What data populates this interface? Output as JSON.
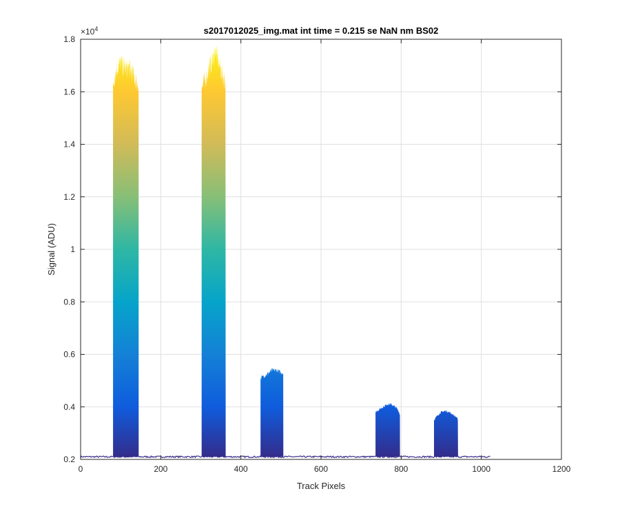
{
  "chart_data": {
    "type": "area",
    "title": "s2017012025_img.mat int time = 0.215 se  NaN nm BS02",
    "xlabel": "Track Pixels",
    "ylabel": "Signal (ADU)",
    "xlim": [
      0,
      1200
    ],
    "ylim": [
      2000,
      18000
    ],
    "x_ticks": [
      0,
      200,
      400,
      600,
      800,
      1000,
      1200
    ],
    "x_tick_labels": [
      "0",
      "200",
      "400",
      "600",
      "800",
      "1000",
      "1200"
    ],
    "y_ticks": [
      2000,
      4000,
      6000,
      8000,
      10000,
      12000,
      14000,
      16000,
      18000
    ],
    "y_tick_labels": [
      "0.2",
      "0.4",
      "0.6",
      "0.8",
      "1",
      "1.2",
      "1.4",
      "1.6",
      "1.8"
    ],
    "y_exponent_label": "×10",
    "y_exponent_power": "4",
    "grid": true,
    "colormap": "parula",
    "colormap_stops": [
      "#352a87",
      "#0f5cdd",
      "#1481d6",
      "#06a4ca",
      "#2eb7a4",
      "#87bf77",
      "#d1bb59",
      "#fec832",
      "#f9fb0e"
    ],
    "baseline": 2100,
    "x_end": 1022,
    "peaks": [
      {
        "x_start": 81,
        "x_end": 145,
        "profile": [
          [
            81,
            16400
          ],
          [
            90,
            16900
          ],
          [
            100,
            17100
          ],
          [
            110,
            16900
          ],
          [
            120,
            16900
          ],
          [
            130,
            16700
          ],
          [
            138,
            16400
          ],
          [
            145,
            16300
          ]
        ]
      },
      {
        "x_start": 302,
        "x_end": 362,
        "profile": [
          [
            302,
            16100
          ],
          [
            310,
            16400
          ],
          [
            320,
            16900
          ],
          [
            330,
            17200
          ],
          [
            335,
            17600
          ],
          [
            345,
            17100
          ],
          [
            355,
            16600
          ],
          [
            362,
            16400
          ]
        ]
      },
      {
        "x_start": 449,
        "x_end": 506,
        "profile": [
          [
            449,
            5100
          ],
          [
            460,
            5200
          ],
          [
            470,
            5300
          ],
          [
            478,
            5400
          ],
          [
            490,
            5400
          ],
          [
            500,
            5300
          ],
          [
            506,
            5300
          ]
        ]
      },
      {
        "x_start": 736,
        "x_end": 797,
        "profile": [
          [
            736,
            3800
          ],
          [
            745,
            3900
          ],
          [
            755,
            4000
          ],
          [
            765,
            4100
          ],
          [
            775,
            4100
          ],
          [
            785,
            4000
          ],
          [
            792,
            3900
          ],
          [
            797,
            3700
          ]
        ]
      },
      {
        "x_start": 882,
        "x_end": 942,
        "profile": [
          [
            882,
            3500
          ],
          [
            892,
            3700
          ],
          [
            900,
            3800
          ],
          [
            910,
            3850
          ],
          [
            920,
            3800
          ],
          [
            930,
            3700
          ],
          [
            938,
            3600
          ],
          [
            942,
            3500
          ]
        ]
      }
    ]
  }
}
